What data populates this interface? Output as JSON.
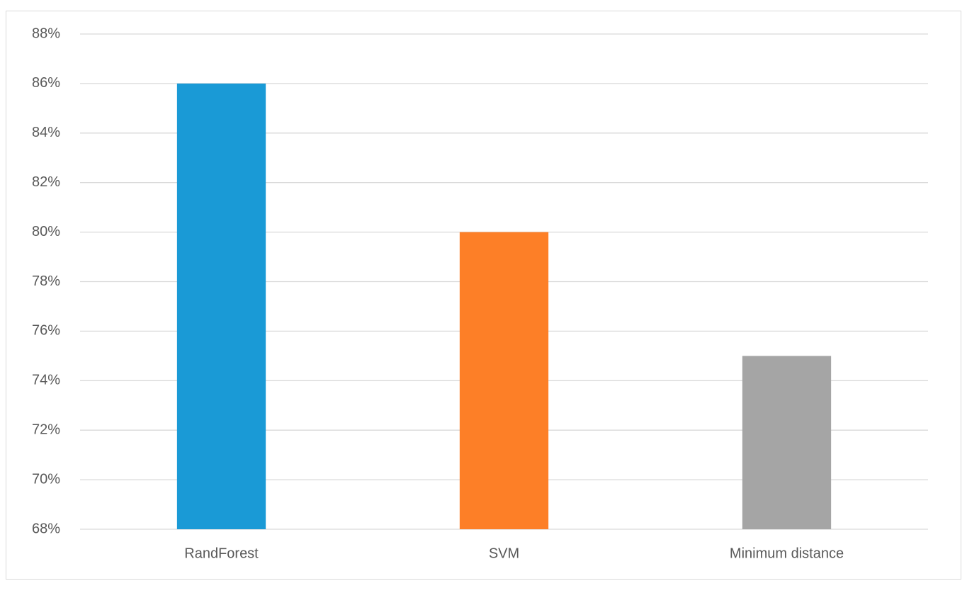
{
  "chart_data": {
    "type": "bar",
    "categories": [
      "RandForest",
      "SVM",
      "Minimum distance"
    ],
    "values": [
      86,
      80,
      75
    ],
    "colors": [
      "#1a9ad6",
      "#fd7f27",
      "#a5a5a5"
    ],
    "ylim": [
      68,
      88
    ],
    "yticks": [
      {
        "value": 68,
        "label": "68%"
      },
      {
        "value": 70,
        "label": "70%"
      },
      {
        "value": 72,
        "label": "72%"
      },
      {
        "value": 74,
        "label": "74%"
      },
      {
        "value": 76,
        "label": "76%"
      },
      {
        "value": 78,
        "label": "78%"
      },
      {
        "value": 80,
        "label": "80%"
      },
      {
        "value": 82,
        "label": "82%"
      },
      {
        "value": 84,
        "label": "84%"
      },
      {
        "value": 86,
        "label": "86%"
      },
      {
        "value": 88,
        "label": "88%"
      }
    ],
    "grid": true
  }
}
